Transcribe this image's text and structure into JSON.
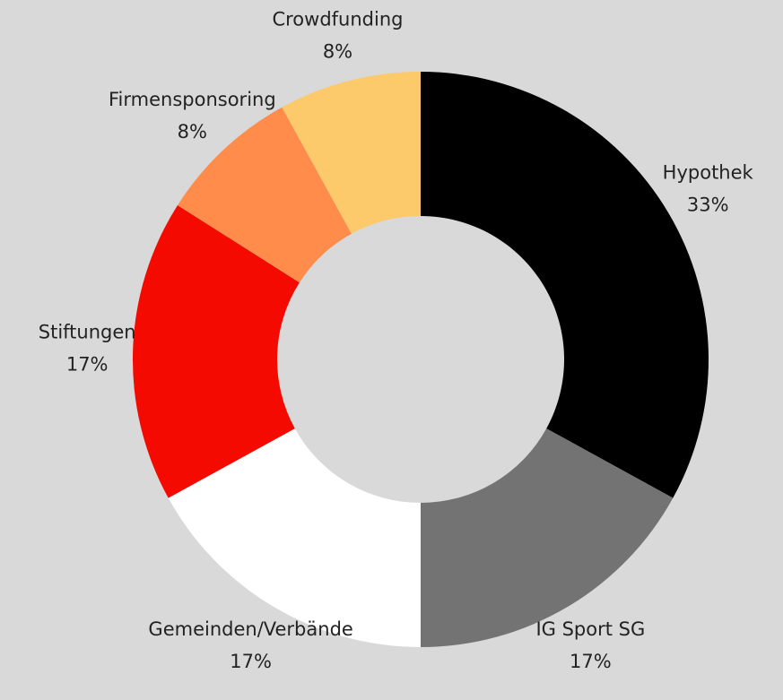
{
  "chart_data": {
    "type": "donut",
    "categories": [
      "Hypothek",
      "IG Sport SG",
      "Gemeinden/Verbände",
      "Stiftungen",
      "Firmensponsoring",
      "Crowdfunding"
    ],
    "values": [
      33,
      17,
      17,
      17,
      8,
      8
    ],
    "value_labels": [
      "33%",
      "17%",
      "17%",
      "17%",
      "8%",
      "8%"
    ],
    "colors": [
      "#000000",
      "#737373",
      "#ffffff",
      "#f50a00",
      "#ff8c4a",
      "#fcc96b"
    ]
  }
}
